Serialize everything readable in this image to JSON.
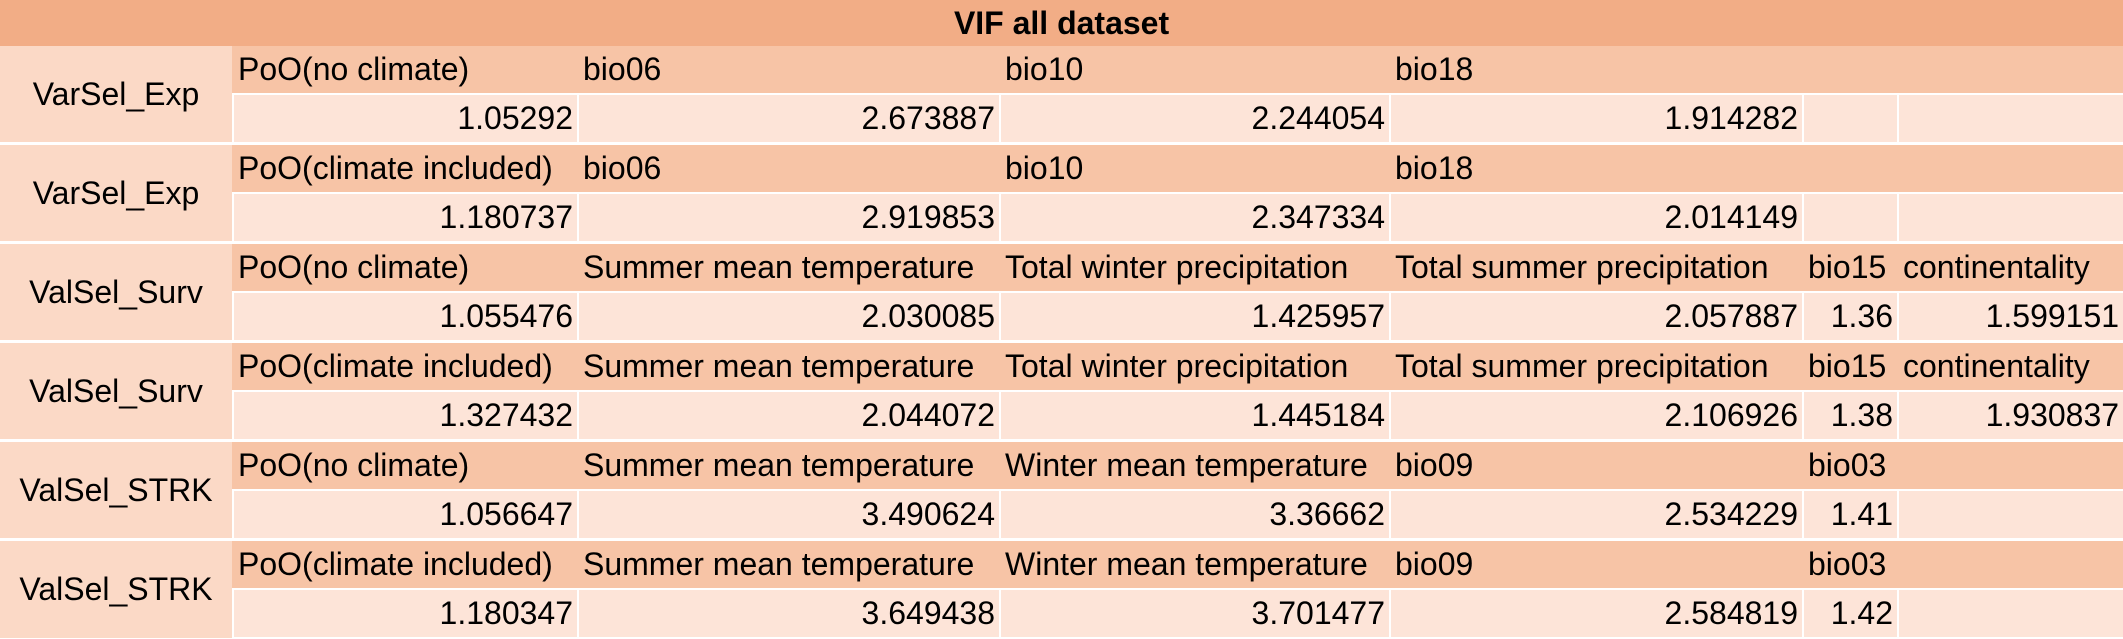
{
  "title": "VIF all dataset",
  "colors": {
    "title_bg": "#f2ad86",
    "header_bg": "#f7c4a6",
    "value_bg": "#fde4d8",
    "label_bg": "#fbd9c6"
  },
  "groups": [
    {
      "label": "VarSel_Exp",
      "headers": [
        "PoO(no climate)",
        "bio06",
        "bio10",
        "bio18",
        "",
        ""
      ],
      "values": [
        "1.05292",
        "2.673887",
        "2.244054",
        "1.914282",
        "",
        ""
      ]
    },
    {
      "label": "VarSel_Exp",
      "headers": [
        "PoO(climate included)",
        "bio06",
        "bio10",
        "bio18",
        "",
        ""
      ],
      "values": [
        "1.180737",
        "2.919853",
        "2.347334",
        "2.014149",
        "",
        ""
      ]
    },
    {
      "label": "ValSel_Surv",
      "headers": [
        "PoO(no climate)",
        "Summer mean temperature",
        "Total winter precipitation",
        "Total summer precipitation",
        "bio15",
        "continentality"
      ],
      "values": [
        "1.055476",
        "2.030085",
        "1.425957",
        "2.057887",
        "1.36",
        "1.599151"
      ]
    },
    {
      "label": "ValSel_Surv",
      "headers": [
        "PoO(climate included)",
        "Summer mean temperature",
        "Total winter precipitation",
        "Total summer precipitation",
        "bio15",
        "continentality"
      ],
      "values": [
        "1.327432",
        "2.044072",
        "1.445184",
        "2.106926",
        "1.38",
        "1.930837"
      ]
    },
    {
      "label": "ValSel_STRK",
      "headers": [
        "PoO(no climate)",
        "Summer mean temperature",
        "Winter mean temperature",
        "bio09",
        "bio03",
        ""
      ],
      "values": [
        "1.056647",
        "3.490624",
        "3.36662",
        "2.534229",
        "1.41",
        ""
      ]
    },
    {
      "label": "ValSel_STRK",
      "headers": [
        "PoO(climate included)",
        "Summer mean temperature",
        "Winter mean temperature",
        "bio09",
        "bio03",
        ""
      ],
      "values": [
        "1.180347",
        "3.649438",
        "3.701477",
        "2.584819",
        "1.42",
        ""
      ]
    }
  ]
}
